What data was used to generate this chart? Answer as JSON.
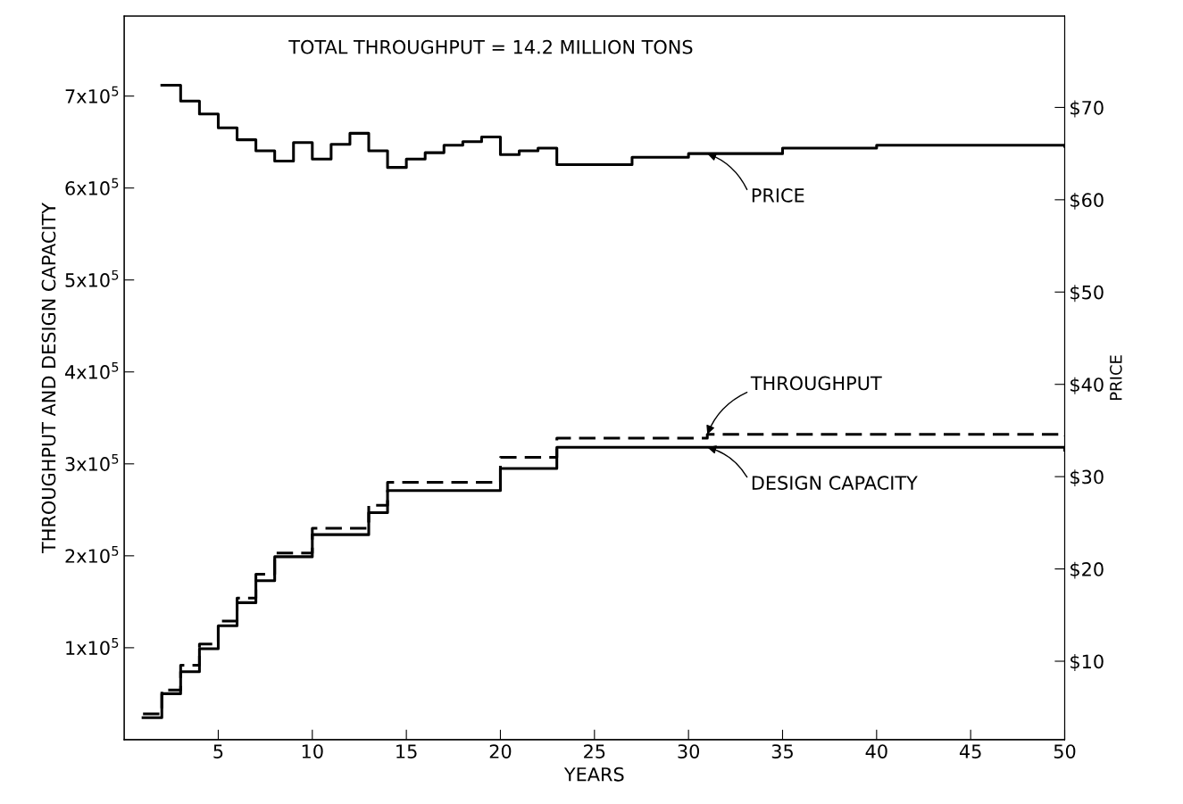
{
  "chart_data": {
    "type": "step",
    "title": "TOTAL THROUGHPUT = 14.2 MILLION TONS",
    "xlabel": "YEARS",
    "ylabel": "THROUGHPUT AND DESIGN CAPACITY",
    "y2label": "PRICE",
    "xlim": [
      0,
      50
    ],
    "xticks": [
      5,
      10,
      15,
      20,
      25,
      30,
      35,
      40,
      45,
      50
    ],
    "ylim": [
      0,
      787000
    ],
    "yticks": [
      {
        "value": 100000,
        "label": "1x10$^{5}$"
      },
      {
        "value": 200000,
        "label": "2x10$^{5}$"
      },
      {
        "value": 300000,
        "label": "3x10$^{5}$"
      },
      {
        "value": 400000,
        "label": "4x10$^{5}$"
      },
      {
        "value": 500000,
        "label": "5x10$^{5}$"
      },
      {
        "value": 600000,
        "label": "6x10$^{5}$"
      },
      {
        "value": 700000,
        "label": "7x10$^{5}$"
      }
    ],
    "y2lim": [
      1.5,
      79.9
    ],
    "y2ticks": [
      {
        "value": 10,
        "label": "$10"
      },
      {
        "value": 20,
        "label": "$20"
      },
      {
        "value": 30,
        "label": "$30"
      },
      {
        "value": 40,
        "label": "$40"
      },
      {
        "value": 50,
        "label": "$50"
      },
      {
        "value": 60,
        "label": "$60"
      },
      {
        "value": 70,
        "label": "$70"
      }
    ],
    "grid": false,
    "legend": false,
    "series": [
      {
        "name": "PRICE",
        "color": "#000000",
        "axis": "y2",
        "line_style": "solid",
        "x": [
          2,
          3,
          4,
          5,
          6,
          7,
          8,
          9,
          10,
          11,
          12,
          13,
          14,
          15,
          16,
          17,
          18,
          19,
          20,
          21,
          22,
          23,
          27,
          30,
          35,
          40,
          50
        ],
        "values": [
          72.4,
          70.7,
          69.3,
          67.8,
          66.5,
          65.3,
          64.2,
          66.2,
          64.4,
          66.0,
          67.2,
          65.3,
          63.5,
          64.4,
          65.1,
          65.9,
          66.3,
          66.8,
          64.9,
          65.3,
          65.6,
          63.8,
          64.6,
          65.0,
          65.6,
          65.9,
          65.8
        ]
      },
      {
        "name": "THROUGHPUT",
        "color": "#000000",
        "line_style": "dashed",
        "x": [
          1,
          2,
          3,
          4,
          5,
          6,
          7,
          8,
          10,
          13,
          14,
          20,
          23,
          31,
          50
        ],
        "values": [
          28000,
          54000,
          81000,
          104000,
          129000,
          154000,
          180000,
          203000,
          230000,
          255000,
          280000,
          307000,
          328000,
          332000,
          330000
        ]
      },
      {
        "name": "DESIGN CAPACITY",
        "color": "#000000",
        "line_style": "solid",
        "x": [
          1,
          2,
          3,
          4,
          5,
          6,
          7,
          8,
          10,
          13,
          14,
          20,
          23,
          50
        ],
        "values": [
          24000,
          50000,
          74000,
          99000,
          124000,
          149000,
          173000,
          199000,
          223000,
          247000,
          271000,
          295000,
          318000,
          315000
        ]
      }
    ]
  }
}
